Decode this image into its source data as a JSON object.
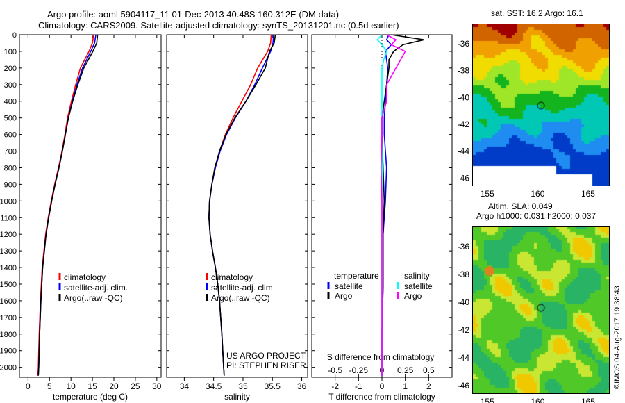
{
  "title_line1": "Argo profile: aoml 5904117_11 01-Dec-2013 40.48S 160.312E (DM data)",
  "title_line2": "Climatology: CARS2009. Satellite-adjusted climatology: synTS_20131201.nc (0.5d earlier)",
  "colors": {
    "climatology": "#ff0000",
    "satellite": "#0000ff",
    "argo": "#000000",
    "sal_satellite": "#00ffff",
    "sal_argo": "#ff00ff"
  },
  "chart_data": [
    {
      "type": "line",
      "name": "temperature",
      "xlabel": "temperature (deg C)",
      "xlim": [
        -2,
        31
      ],
      "ylim": [
        2060,
        0
      ],
      "xticks": [
        0,
        5,
        10,
        15,
        20,
        25,
        30
      ],
      "yticks": [
        0,
        100,
        200,
        300,
        400,
        500,
        600,
        700,
        800,
        900,
        1000,
        1100,
        1200,
        1300,
        1400,
        1500,
        1600,
        1700,
        1800,
        1900,
        2000
      ],
      "legend": [
        "climatology",
        "satellite-adj. clim.",
        "Argo(..raw -QC)"
      ],
      "depth": [
        0,
        50,
        100,
        200,
        300,
        400,
        500,
        600,
        700,
        800,
        900,
        1000,
        1100,
        1200,
        1300,
        1400,
        1600,
        1800,
        2000,
        2050
      ],
      "series": [
        {
          "name": "climatology",
          "values": [
            15.3,
            15.0,
            14.2,
            12.2,
            11.1,
            10.1,
            9.2,
            8.6,
            7.9,
            7.1,
            6.2,
            5.4,
            4.7,
            4.1,
            3.7,
            3.3,
            2.9,
            2.6,
            2.4,
            2.3
          ]
        },
        {
          "name": "satellite",
          "values": [
            15.8,
            15.5,
            14.6,
            12.7,
            11.4,
            10.3,
            9.4,
            8.7,
            8.0,
            7.2,
            6.3,
            5.5,
            4.8,
            4.2,
            3.8,
            3.4,
            3.0,
            2.7,
            2.5,
            2.4
          ]
        },
        {
          "name": "argo",
          "values": [
            16.2,
            16.0,
            15.1,
            13.0,
            11.6,
            10.4,
            9.4,
            8.7,
            8.0,
            7.2,
            6.3,
            5.5,
            4.8,
            4.2,
            3.8,
            3.4,
            3.0,
            2.7,
            2.5,
            2.4
          ]
        }
      ]
    },
    {
      "type": "line",
      "name": "salinity",
      "xlabel": "salinity",
      "xlim": [
        33.7,
        36.1
      ],
      "ylim": [
        2060,
        0
      ],
      "xticks": [
        34,
        34.5,
        35,
        35.5,
        36
      ],
      "legend": [
        "climatology",
        "satellite-adj. clim.",
        "Argo(..raw -QC)"
      ],
      "annotation": [
        "US ARGO PROJECT",
        "PI: STEPHEN RISER"
      ],
      "depth": [
        0,
        50,
        100,
        200,
        300,
        400,
        500,
        600,
        700,
        800,
        900,
        1000,
        1100,
        1200,
        1300,
        1400,
        1500,
        1600,
        1800,
        2000,
        2050
      ],
      "series": [
        {
          "name": "climatology",
          "values": [
            35.48,
            35.47,
            35.42,
            35.25,
            35.13,
            34.98,
            34.83,
            34.7,
            34.6,
            34.52,
            34.47,
            34.43,
            34.42,
            34.44,
            34.48,
            34.53,
            34.57,
            34.6,
            34.64,
            34.67,
            34.68
          ]
        },
        {
          "name": "satellite",
          "values": [
            35.52,
            35.51,
            35.47,
            35.33,
            35.2,
            35.05,
            34.87,
            34.72,
            34.61,
            34.53,
            34.47,
            34.43,
            34.42,
            34.44,
            34.48,
            34.53,
            34.57,
            34.6,
            34.64,
            34.67,
            34.68
          ]
        },
        {
          "name": "argo",
          "values": [
            35.55,
            35.53,
            35.45,
            35.38,
            35.22,
            35.05,
            34.86,
            34.71,
            34.6,
            34.52,
            34.47,
            34.43,
            34.42,
            34.44,
            34.48,
            34.53,
            34.57,
            34.6,
            34.64,
            34.67,
            34.68
          ]
        }
      ]
    },
    {
      "type": "line",
      "name": "difference",
      "xlabel": "T difference from climatology",
      "x2label": "S difference from climatology",
      "xlim": [
        -3,
        3
      ],
      "xticks": [
        -2,
        -1,
        0,
        1,
        2
      ],
      "x2ticks": [
        "-0.5",
        "-0.25",
        "0",
        "0.25",
        "0.5"
      ],
      "ylim": [
        2060,
        0
      ],
      "legend_temperature": {
        "title": "temperature",
        "items": [
          "satellite",
          "Argo"
        ]
      },
      "legend_salinity": {
        "title": "salinity",
        "items": [
          "satellite",
          "Argo"
        ]
      },
      "depth": [
        0,
        30,
        60,
        100,
        150,
        200,
        300,
        400,
        500,
        600,
        800,
        1000,
        1200,
        1500,
        1800,
        2000,
        2050
      ],
      "series": [
        {
          "name": "T satellite",
          "values": [
            0.3,
            0.2,
            0.4,
            0.15,
            0.2,
            0.25,
            0.2,
            0.15,
            0.1,
            0.1,
            0.2,
            0.15,
            0.05,
            0.05,
            0.0,
            0.0,
            0.0
          ]
        },
        {
          "name": "T Argo",
          "values": [
            0.4,
            1.8,
            0.9,
            0.5,
            0.3,
            0.3,
            0.2,
            0.1,
            0.0,
            0.0,
            0.05,
            0.1,
            0.05,
            0.05,
            0.0,
            0.0,
            0.0
          ]
        },
        {
          "name": "S satellite",
          "values": [
            0.0,
            -0.05,
            0.0,
            0.05,
            0.02,
            0.0,
            0.0,
            0.0,
            0.0,
            0.0,
            0.0,
            0.0,
            0.0,
            0.0,
            0.0,
            0.0,
            0.0
          ]
        },
        {
          "name": "S Argo",
          "values": [
            0.05,
            0.15,
            0.1,
            0.25,
            0.2,
            0.15,
            0.05,
            0.05,
            0.0,
            0.0,
            -0.01,
            0.0,
            0.0,
            0.0,
            0.0,
            0.0,
            0.0
          ]
        }
      ]
    },
    {
      "type": "heatmap",
      "name": "sst_map",
      "title": "sat. SST: 16.2 Argo: 16.1",
      "xticks": [
        "155",
        "160",
        "165"
      ],
      "yticks": [
        "-36",
        "-38",
        "-40",
        "-42",
        "-44",
        "-46"
      ]
    },
    {
      "type": "heatmap",
      "name": "sla_map",
      "title_line1": "Altim. SLA: 0.049",
      "title_line2": "Argo h1000: 0.031 h2000: 0.037",
      "xticks": [
        "155",
        "160",
        "165"
      ],
      "yticks": [
        "-36",
        "-38",
        "-40",
        "-42",
        "-44",
        "-46"
      ]
    }
  ],
  "credit": "©IMOS 04-Aug-2017 19:38:43"
}
